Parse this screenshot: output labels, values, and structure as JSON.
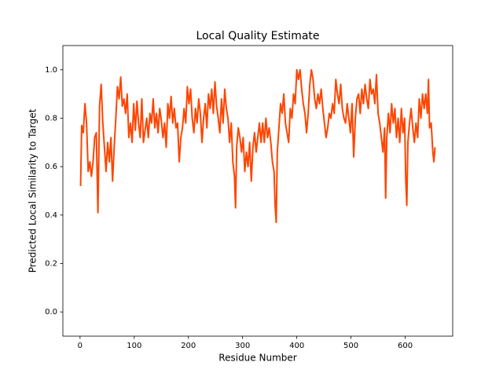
{
  "chart_data": {
    "type": "line",
    "title": "Local Quality Estimate",
    "xlabel": "Residue Number",
    "ylabel": "Predicted Local Similarity to Target",
    "color": "#ff4500",
    "xlim": [
      -31.7,
      687.7
    ],
    "xticks": [
      0,
      100,
      200,
      300,
      400,
      500,
      600
    ],
    "ylim": [
      -0.1,
      1.1
    ],
    "yticks": [
      {
        "value": 0,
        "label": "0.0"
      },
      0.2,
      0.4,
      0.6,
      0.8,
      {
        "value": 1,
        "label": "1.0"
      }
    ],
    "x": [
      1,
      3,
      6,
      9,
      12,
      15,
      18,
      21,
      24,
      27,
      30,
      33,
      36,
      39,
      42,
      45,
      48,
      51,
      54,
      57,
      60,
      63,
      66,
      69,
      72,
      75,
      78,
      81,
      84,
      87,
      90,
      93,
      96,
      99,
      102,
      105,
      108,
      111,
      114,
      117,
      120,
      123,
      126,
      129,
      132,
      135,
      138,
      141,
      144,
      147,
      150,
      153,
      156,
      159,
      162,
      165,
      168,
      171,
      174,
      177,
      180,
      183,
      186,
      189,
      192,
      195,
      198,
      201,
      204,
      207,
      210,
      213,
      216,
      219,
      222,
      225,
      228,
      231,
      234,
      237,
      240,
      243,
      246,
      249,
      252,
      255,
      258,
      261,
      264,
      267,
      270,
      273,
      276,
      279,
      282,
      285,
      287,
      289,
      292,
      295,
      298,
      301,
      304,
      307,
      310,
      313,
      316,
      319,
      322,
      325,
      328,
      331,
      334,
      337,
      340,
      343,
      346,
      349,
      352,
      355,
      358,
      360,
      362,
      364,
      367,
      370,
      373,
      376,
      379,
      382,
      385,
      388,
      391,
      394,
      397,
      400,
      403,
      406,
      409,
      412,
      415,
      418,
      421,
      424,
      427,
      430,
      433,
      436,
      439,
      442,
      445,
      448,
      451,
      454,
      457,
      460,
      463,
      466,
      469,
      472,
      475,
      478,
      481,
      484,
      487,
      490,
      493,
      496,
      499,
      502,
      505,
      508,
      511,
      514,
      517,
      520,
      523,
      526,
      529,
      532,
      535,
      538,
      541,
      544,
      547,
      550,
      553,
      556,
      559,
      562,
      564,
      566,
      569,
      572,
      575,
      578,
      581,
      584,
      587,
      590,
      593,
      596,
      599,
      601,
      603,
      605,
      608,
      611,
      614,
      617,
      620,
      623,
      626,
      629,
      632,
      635,
      638,
      641,
      643,
      645,
      648,
      651,
      653,
      655
    ],
    "values": [
      0.52,
      0.77,
      0.74,
      0.86,
      0.78,
      0.58,
      0.62,
      0.56,
      0.62,
      0.72,
      0.74,
      0.41,
      0.85,
      0.94,
      0.78,
      0.68,
      0.58,
      0.7,
      0.62,
      0.72,
      0.54,
      0.68,
      0.8,
      0.93,
      0.88,
      0.97,
      0.85,
      0.88,
      0.82,
      0.9,
      0.72,
      0.78,
      0.7,
      0.86,
      0.75,
      0.87,
      0.78,
      0.72,
      0.88,
      0.7,
      0.75,
      0.8,
      0.72,
      0.82,
      0.78,
      0.88,
      0.76,
      0.82,
      0.74,
      0.84,
      0.79,
      0.72,
      0.78,
      0.68,
      0.86,
      0.8,
      0.89,
      0.78,
      0.84,
      0.76,
      0.78,
      0.62,
      0.72,
      0.76,
      0.84,
      0.78,
      0.93,
      0.86,
      0.92,
      0.8,
      0.74,
      0.84,
      0.78,
      0.88,
      0.82,
      0.7,
      0.8,
      0.86,
      0.76,
      0.9,
      0.84,
      0.92,
      0.82,
      0.95,
      0.85,
      0.8,
      0.74,
      0.88,
      0.78,
      0.92,
      0.84,
      0.8,
      0.7,
      0.78,
      0.62,
      0.56,
      0.43,
      0.68,
      0.76,
      0.72,
      0.66,
      0.72,
      0.58,
      0.66,
      0.6,
      0.7,
      0.54,
      0.68,
      0.74,
      0.66,
      0.72,
      0.78,
      0.7,
      0.78,
      0.7,
      0.8,
      0.72,
      0.76,
      0.7,
      0.62,
      0.58,
      0.44,
      0.37,
      0.66,
      0.76,
      0.86,
      0.82,
      0.9,
      0.78,
      0.74,
      0.7,
      0.84,
      0.8,
      0.9,
      0.86,
      1.0,
      0.96,
      1.0,
      0.92,
      0.86,
      0.82,
      0.74,
      0.82,
      0.94,
      1.0,
      0.96,
      0.88,
      0.84,
      0.9,
      0.86,
      0.92,
      0.84,
      0.78,
      0.72,
      0.76,
      0.82,
      0.8,
      0.86,
      0.82,
      0.96,
      0.9,
      0.86,
      0.94,
      0.84,
      0.8,
      0.78,
      0.86,
      0.8,
      0.74,
      0.86,
      0.64,
      0.8,
      0.88,
      0.9,
      0.82,
      0.92,
      0.86,
      0.94,
      0.88,
      0.84,
      0.96,
      0.9,
      0.92,
      0.86,
      0.98,
      0.82,
      0.78,
      0.72,
      0.66,
      0.76,
      0.47,
      0.72,
      0.82,
      0.74,
      0.86,
      0.78,
      0.84,
      0.72,
      0.8,
      0.7,
      0.84,
      0.74,
      0.8,
      0.55,
      0.44,
      0.7,
      0.78,
      0.84,
      0.76,
      0.7,
      0.78,
      0.72,
      0.88,
      0.8,
      0.9,
      0.84,
      0.9,
      0.82,
      0.96,
      0.76,
      0.78,
      0.66,
      0.62,
      0.68
    ]
  }
}
